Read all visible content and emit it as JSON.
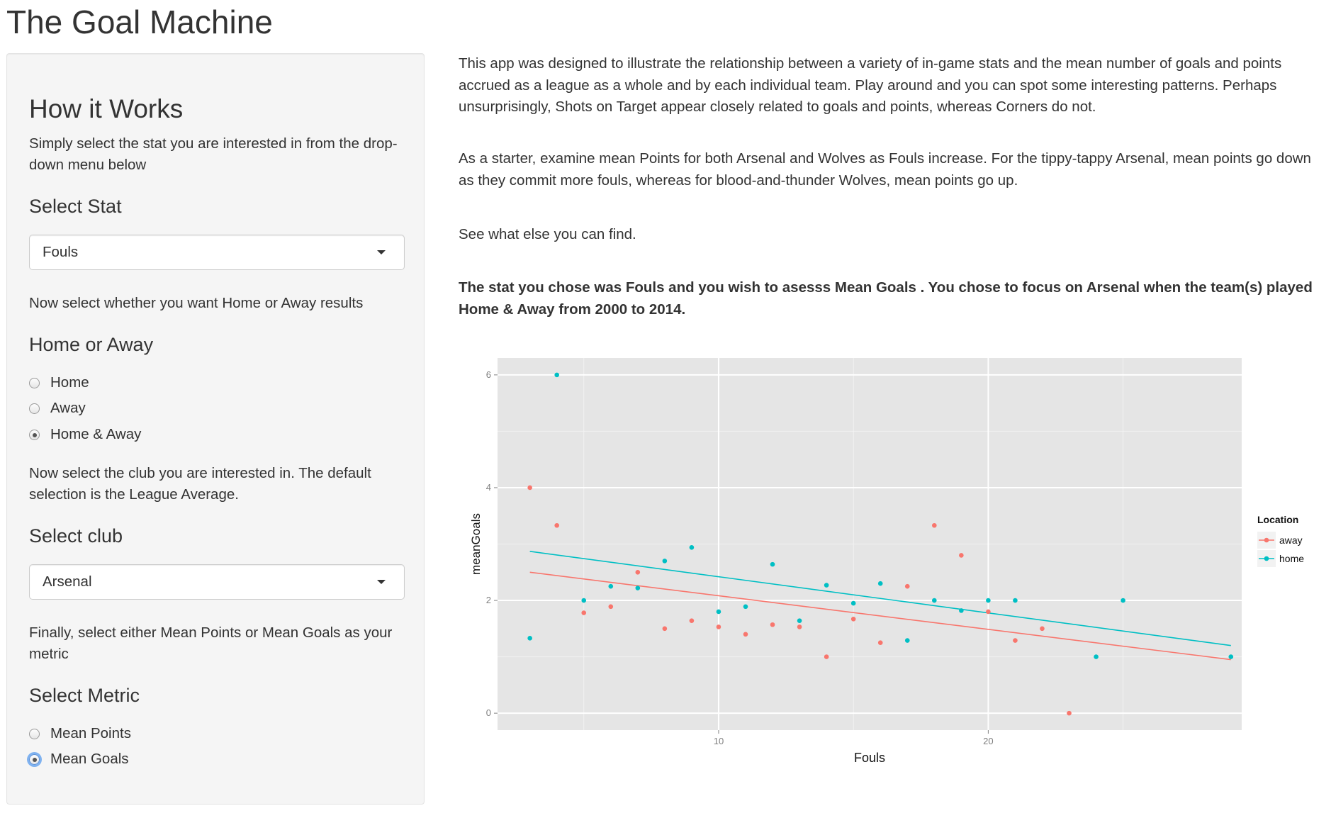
{
  "app": {
    "title": "The Goal Machine"
  },
  "sidebar": {
    "heading": "How it Works",
    "intro": "Simply select the stat you are interested in from the drop-down menu below",
    "stat": {
      "label": "Select Stat",
      "value": "Fouls"
    },
    "homeaway": {
      "prompt": "Now select whether you want Home or Away results",
      "label": "Home or Away",
      "options": [
        "Home",
        "Away",
        "Home & Away"
      ],
      "selected": "Home & Away"
    },
    "club": {
      "prompt": "Now select the club you are interested in. The default selection is the League Average.",
      "label": "Select club",
      "value": "Arsenal"
    },
    "metric": {
      "prompt": "Finally, select either Mean Points or Mean Goals as your metric",
      "label": "Select Metric",
      "options": [
        "Mean Points",
        "Mean Goals"
      ],
      "selected": "Mean Goals"
    }
  },
  "main": {
    "para1": "This app was designed to illustrate the relationship between a variety of in-game stats and the mean number of goals and points accrued as a league as a whole and by each individual team. Play around and you can spot some interesting patterns. Perhaps unsurprisingly, Shots on Target appear closely related to goals and points, whereas Corners do not.",
    "para2": "As a starter, examine mean Points for both Arsenal and Wolves as Fouls increase. For the tippy-tappy Arsenal, mean points go down as they commit more fouls, whereas for blood-and-thunder Wolves, mean points go up.",
    "para3": "See what else you can find.",
    "summary": "The stat you chose was Fouls and you wish to asesss Mean Goals . You chose to focus on Arsenal when the team(s) played Home & Away from 2000 to 2014."
  },
  "chart_data": {
    "type": "scatter",
    "xlabel": "Fouls",
    "ylabel": "meanGoals",
    "x_ticks": [
      10,
      20
    ],
    "y_ticks": [
      0,
      2,
      4,
      6
    ],
    "xlim": [
      1.8,
      29.4
    ],
    "ylim": [
      -0.3,
      6.3
    ],
    "legend": {
      "title": "Location",
      "position": "right"
    },
    "grid": true,
    "series": [
      {
        "name": "away",
        "color": "#f8766d",
        "points": [
          [
            3,
            4
          ],
          [
            4,
            3.33
          ],
          [
            5,
            1.78
          ],
          [
            6,
            1.89
          ],
          [
            7,
            2.5
          ],
          [
            8,
            1.5
          ],
          [
            9,
            1.64
          ],
          [
            10,
            1.53
          ],
          [
            11,
            1.4
          ],
          [
            12,
            1.57
          ],
          [
            13,
            1.53
          ],
          [
            14,
            1
          ],
          [
            15,
            1.67
          ],
          [
            16,
            1.25
          ],
          [
            17,
            2.25
          ],
          [
            18,
            3.33
          ],
          [
            19,
            2.8
          ],
          [
            20,
            1.8
          ],
          [
            21,
            1.29
          ],
          [
            22,
            1.5
          ],
          [
            23,
            0
          ]
        ],
        "fit": [
          [
            3,
            2.5
          ],
          [
            29,
            0.95
          ]
        ]
      },
      {
        "name": "home",
        "color": "#00bfc4",
        "points": [
          [
            3,
            1.33
          ],
          [
            4,
            6
          ],
          [
            5,
            2
          ],
          [
            6,
            2.25
          ],
          [
            7,
            2.22
          ],
          [
            8,
            2.7
          ],
          [
            9,
            2.94
          ],
          [
            10,
            1.8
          ],
          [
            11,
            1.89
          ],
          [
            12,
            2.64
          ],
          [
            13,
            1.64
          ],
          [
            14,
            2.27
          ],
          [
            15,
            1.95
          ],
          [
            16,
            2.3
          ],
          [
            17,
            1.29
          ],
          [
            18,
            2
          ],
          [
            19,
            1.82
          ],
          [
            20,
            2
          ],
          [
            21,
            2
          ],
          [
            24,
            1
          ],
          [
            25,
            2
          ],
          [
            29,
            1
          ]
        ],
        "fit": [
          [
            3,
            2.87
          ],
          [
            29,
            1.2
          ]
        ]
      }
    ]
  }
}
